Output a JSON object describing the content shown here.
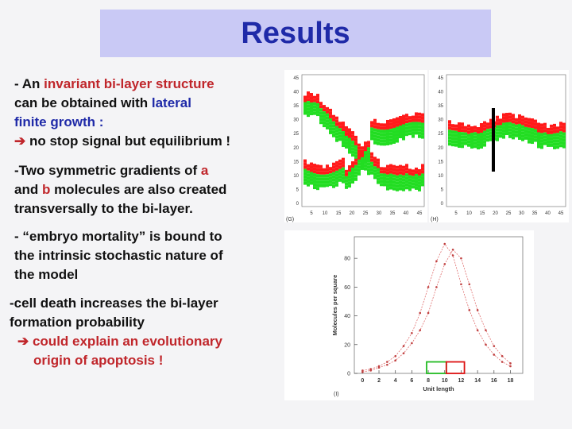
{
  "title": "Results",
  "bullets": {
    "b1": {
      "prefix": "- An ",
      "hl1": "invariant bi-layer structure",
      "mid1": "can be obtained with ",
      "hl2": "lateral",
      "line3": "finite growth :",
      "arrow": "➔",
      "line4": " no stop signal but equilibrium !"
    },
    "b2": {
      "line1_pre": "-Two symmetric gradients of ",
      "a": "a",
      "line2_pre": "and ",
      "b": "b",
      "line2_post": " molecules are also created",
      "line3": "transversally to the bi-layer."
    },
    "b3": {
      "line1": "- “embryo mortality” is bound to",
      "line2": "the intrinsic stochastic nature of",
      "line3": "the model"
    },
    "b4": {
      "line1": "-cell death increases the bi-layer",
      "line2": "formation probability",
      "arrow": "➔",
      "line3": " could explain an evolutionary",
      "line4": "origin of apoptosis !"
    }
  },
  "colors": {
    "title_bg": "#c9c9f5",
    "title_fg": "#1f2aa8",
    "highlight_red": "#c0262b",
    "highlight_blue": "#1f2aa8",
    "layer_red": "#ff1a1a",
    "layer_green": "#22dd22"
  },
  "panels": {
    "G": {
      "label": "(G)",
      "yticks": [
        "45",
        "40",
        "35",
        "30",
        "25",
        "20",
        "15",
        "10",
        "5",
        "0"
      ],
      "xticks": [
        "5",
        "10",
        "15",
        "20",
        "25",
        "30",
        "35",
        "40",
        "45"
      ]
    },
    "H": {
      "label": "(H)",
      "yticks": [
        "45",
        "40",
        "35",
        "30",
        "25",
        "20",
        "15",
        "10",
        "5",
        "0"
      ],
      "xticks": [
        "5",
        "10",
        "15",
        "20",
        "25",
        "30",
        "35",
        "40",
        "45"
      ]
    }
  },
  "chart_data": {
    "type": "line",
    "label": "(I)",
    "xlabel": "Unit length",
    "ylabel": "Molecules per square",
    "xticks": [
      "0",
      "2",
      "4",
      "6",
      "8",
      "10",
      "12",
      "14",
      "16",
      "18"
    ],
    "yticks": [
      "0",
      "20",
      "40",
      "60",
      "80"
    ],
    "xlim": [
      -1,
      19.5
    ],
    "ylim": [
      0,
      95
    ],
    "series": [
      {
        "name": "",
        "color": "#e07070",
        "x": [
          0,
          1,
          2,
          3,
          4,
          5,
          6,
          7,
          8,
          9,
          10,
          11,
          12,
          13,
          14,
          15,
          16,
          17,
          18
        ],
        "y": [
          2,
          3,
          5,
          8,
          12,
          19,
          28,
          42,
          60,
          78,
          90,
          82,
          62,
          44,
          30,
          20,
          13,
          8,
          5
        ]
      },
      {
        "name": "",
        "color": "#e07070",
        "x": [
          0,
          1,
          2,
          3,
          4,
          5,
          6,
          7,
          8,
          9,
          10,
          11,
          12,
          13,
          14,
          15,
          16,
          17,
          18
        ],
        "y": [
          1,
          2,
          4,
          6,
          9,
          14,
          21,
          30,
          42,
          60,
          76,
          86,
          80,
          62,
          44,
          30,
          19,
          12,
          7
        ]
      }
    ],
    "boxes": [
      {
        "x0": 7.8,
        "x1": 10.2,
        "y": 8,
        "color": "#22bb22"
      },
      {
        "x0": 10.2,
        "x1": 12.4,
        "y": 8,
        "color": "#dd1111"
      }
    ]
  }
}
